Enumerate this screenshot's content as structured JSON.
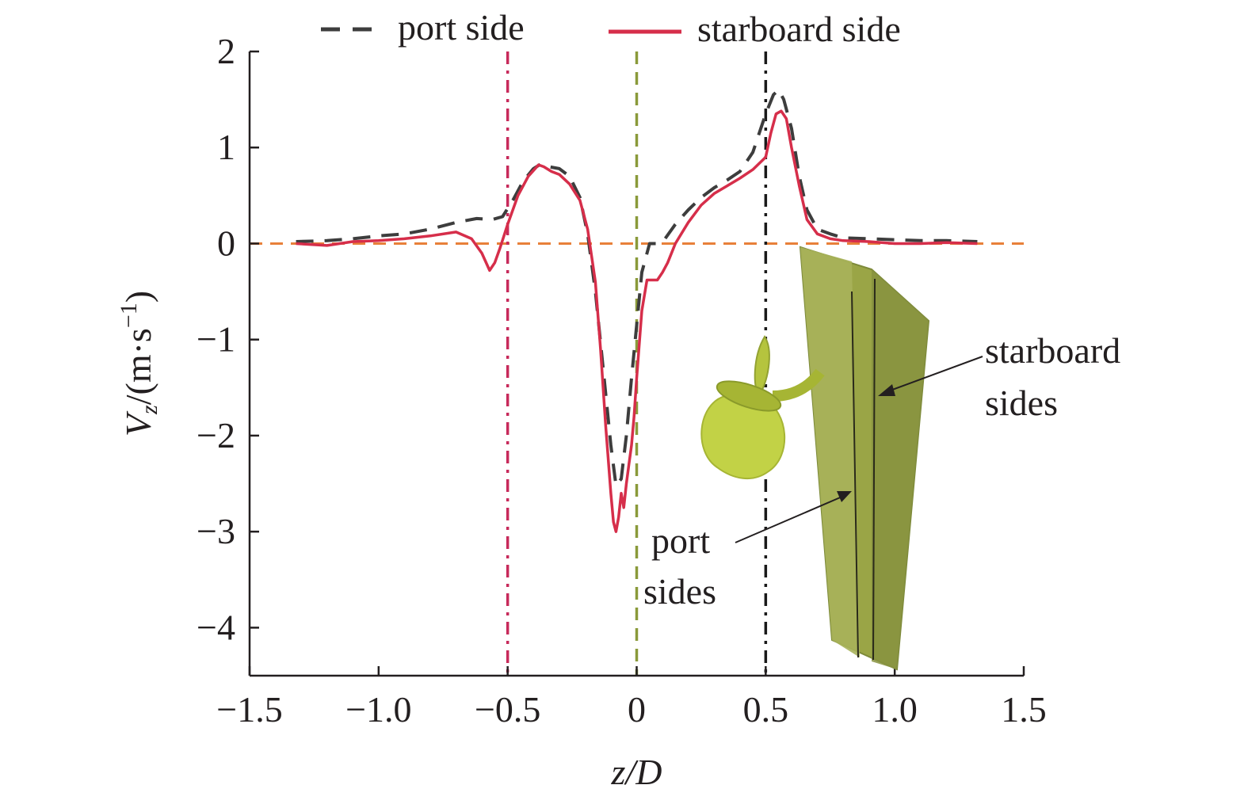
{
  "chart_data": {
    "type": "line",
    "xlabel": {
      "var": "z",
      "unit": "/D"
    },
    "ylabel": {
      "var": "V",
      "sub": "z",
      "unit": "/(m·s",
      "sup": "−1",
      "close": ")"
    },
    "xlim": [
      -1.5,
      1.5
    ],
    "ylim": [
      -4.5,
      2
    ],
    "xticks": [
      -1.5,
      -1.0,
      -0.5,
      0,
      0.5,
      1.0,
      1.5
    ],
    "xtick_labels": [
      "−1.5",
      "−1.0",
      "−0.5",
      "0",
      "0.5",
      "1.0",
      "1.5"
    ],
    "yticks": [
      2,
      1,
      0,
      -1,
      -2,
      -3,
      -4
    ],
    "ytick_labels": [
      "2",
      "1",
      "0",
      "−1",
      "−2",
      "−3",
      "−4"
    ],
    "legend": {
      "placement": "top",
      "entries": [
        "port side",
        "starboard side"
      ]
    },
    "series": [
      {
        "name": "port side",
        "color": "#3d3d3d",
        "style": "dashed",
        "x": [
          -1.32,
          -1.2,
          -1.1,
          -1.0,
          -0.9,
          -0.8,
          -0.7,
          -0.62,
          -0.56,
          -0.52,
          -0.48,
          -0.44,
          -0.4,
          -0.37,
          -0.34,
          -0.3,
          -0.26,
          -0.22,
          -0.19,
          -0.16,
          -0.13,
          -0.1,
          -0.08,
          -0.06,
          -0.04,
          -0.02,
          0.0,
          0.02,
          0.05,
          0.08,
          0.11,
          0.15,
          0.2,
          0.25,
          0.3,
          0.35,
          0.4,
          0.45,
          0.5,
          0.53,
          0.55,
          0.57,
          0.6,
          0.63,
          0.66,
          0.7,
          0.75,
          0.8,
          0.9,
          1.0,
          1.1,
          1.2,
          1.32
        ],
        "y": [
          0.02,
          0.03,
          0.05,
          0.08,
          0.1,
          0.15,
          0.22,
          0.26,
          0.25,
          0.28,
          0.45,
          0.65,
          0.78,
          0.83,
          0.8,
          0.78,
          0.7,
          0.48,
          0.1,
          -0.5,
          -1.3,
          -2.1,
          -2.52,
          -2.45,
          -2.0,
          -1.4,
          -0.85,
          -0.3,
          0.0,
          0.0,
          0.05,
          0.2,
          0.35,
          0.48,
          0.58,
          0.66,
          0.75,
          0.95,
          1.35,
          1.55,
          1.6,
          1.5,
          1.2,
          0.7,
          0.35,
          0.15,
          0.1,
          0.06,
          0.05,
          0.04,
          0.03,
          0.03,
          0.02
        ]
      },
      {
        "name": "starboard side",
        "color": "#d62e4a",
        "style": "solid",
        "x": [
          -1.32,
          -1.2,
          -1.1,
          -1.0,
          -0.9,
          -0.8,
          -0.7,
          -0.64,
          -0.6,
          -0.57,
          -0.55,
          -0.53,
          -0.5,
          -0.46,
          -0.42,
          -0.38,
          -0.36,
          -0.33,
          -0.3,
          -0.26,
          -0.22,
          -0.19,
          -0.16,
          -0.14,
          -0.12,
          -0.1,
          -0.09,
          -0.08,
          -0.07,
          -0.06,
          -0.05,
          -0.04,
          -0.03,
          -0.02,
          -0.01,
          0.0,
          0.02,
          0.04,
          0.06,
          0.08,
          0.1,
          0.12,
          0.15,
          0.2,
          0.25,
          0.3,
          0.35,
          0.4,
          0.45,
          0.5,
          0.52,
          0.54,
          0.56,
          0.58,
          0.6,
          0.63,
          0.66,
          0.7,
          0.75,
          0.8,
          0.9,
          1.0,
          1.1,
          1.2,
          1.32
        ],
        "y": [
          0.0,
          -0.02,
          0.02,
          0.03,
          0.05,
          0.08,
          0.12,
          0.05,
          -0.1,
          -0.28,
          -0.2,
          -0.05,
          0.2,
          0.5,
          0.7,
          0.82,
          0.8,
          0.75,
          0.72,
          0.62,
          0.45,
          0.15,
          -0.4,
          -1.1,
          -1.9,
          -2.6,
          -2.9,
          -3.0,
          -2.85,
          -2.6,
          -2.75,
          -2.5,
          -2.3,
          -2.1,
          -1.8,
          -1.4,
          -0.7,
          -0.38,
          -0.38,
          -0.38,
          -0.3,
          -0.2,
          0.0,
          0.22,
          0.4,
          0.52,
          0.6,
          0.68,
          0.77,
          0.9,
          1.15,
          1.35,
          1.38,
          1.3,
          1.0,
          0.6,
          0.25,
          0.1,
          0.05,
          0.03,
          0.02,
          0.0,
          0.0,
          0.01,
          0.0
        ]
      }
    ],
    "reference_lines": [
      {
        "orientation": "horizontal",
        "value": 0,
        "color": "#e8803a",
        "style": "dashed"
      },
      {
        "orientation": "vertical",
        "value": -0.5,
        "color": "#c72a5b",
        "style": "dash-dot"
      },
      {
        "orientation": "vertical",
        "value": 0,
        "color": "#8a9a3a",
        "style": "dashed"
      },
      {
        "orientation": "vertical",
        "value": 0.5,
        "color": "#1a1a1a",
        "style": "dash-dot"
      }
    ],
    "annotations": [
      {
        "name": "starboard",
        "lines": [
          "starboard",
          "sides"
        ]
      },
      {
        "name": "port",
        "lines": [
          "port",
          "sides"
        ]
      }
    ],
    "inset_colors": {
      "rudder": "#9aa546",
      "rudder_dark": "#7d8a3a",
      "propeller": "#c2d246",
      "propeller_dark": "#a6b534"
    }
  }
}
